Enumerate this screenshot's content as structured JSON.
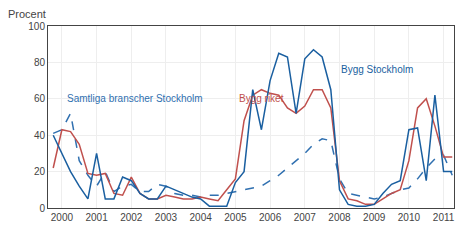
{
  "chart_data": {
    "type": "line",
    "y_label": "Procent",
    "x": [
      1999.75,
      2000.0,
      2000.25,
      2000.5,
      2000.75,
      2001.0,
      2001.25,
      2001.5,
      2001.75,
      2002.0,
      2002.25,
      2002.5,
      2002.75,
      2003.0,
      2003.25,
      2003.5,
      2003.75,
      2004.0,
      2004.25,
      2004.5,
      2004.75,
      2005.0,
      2005.25,
      2005.5,
      2005.75,
      2006.0,
      2006.25,
      2006.5,
      2006.75,
      2007.0,
      2007.25,
      2007.5,
      2007.75,
      2008.0,
      2008.25,
      2008.5,
      2008.75,
      2009.0,
      2009.25,
      2009.5,
      2009.75,
      2010.0,
      2010.25,
      2010.5,
      2010.75,
      2011.0,
      2011.25
    ],
    "series": [
      {
        "color": "#3070b0",
        "line_style": "dashed",
        "values": [
          41,
          43,
          52,
          26,
          18,
          12,
          20,
          9,
          12,
          13,
          9,
          9,
          13,
          12,
          8,
          7,
          7,
          6,
          7,
          7,
          8,
          9,
          10,
          11,
          12,
          15,
          18,
          22,
          26,
          30,
          35,
          38,
          37,
          16,
          8,
          7,
          6,
          5,
          6,
          8,
          10,
          11,
          16,
          22,
          27,
          29,
          18
        ]
      },
      {
        "color": "#c0504d",
        "line_style": "solid",
        "values": [
          22,
          43,
          42,
          35,
          19,
          18,
          19,
          8,
          7,
          17,
          8,
          5,
          5,
          7,
          6,
          5,
          5,
          6,
          5,
          4,
          10,
          16,
          48,
          62,
          65,
          63,
          62,
          55,
          52,
          56,
          65,
          65,
          55,
          15,
          5,
          4,
          2,
          2,
          5,
          8,
          10,
          26,
          55,
          60,
          45,
          28,
          28
        ]
      },
      {
        "color": "#1a5fa0",
        "line_style": "solid",
        "values": [
          40,
          30,
          20,
          12,
          5,
          30,
          5,
          5,
          17,
          15,
          8,
          5,
          5,
          12,
          10,
          8,
          6,
          5,
          1,
          1,
          1,
          14,
          20,
          65,
          43,
          70,
          85,
          83,
          52,
          82,
          87,
          83,
          65,
          10,
          2,
          1,
          1,
          2,
          8,
          13,
          15,
          43,
          44,
          15,
          62,
          20,
          20
        ]
      }
    ],
    "annotations": [
      {
        "text": "Samtliga branscher Stockholm",
        "x": 2000.1,
        "y": 56,
        "color": "#3070b0"
      },
      {
        "text": "Bygg riket",
        "x": 2005.05,
        "y": 56,
        "color": "#c0504d"
      },
      {
        "text": "Bygg Stockholm",
        "x": 2008.0,
        "y": 72,
        "color": "#1a5fa0"
      }
    ],
    "xlim": [
      1999.6,
      2011.3
    ],
    "xticks": [
      2000,
      2001,
      2002,
      2003,
      2004,
      2005,
      2006,
      2007,
      2008,
      2009,
      2010,
      2011
    ],
    "ylim": [
      0,
      100
    ],
    "yticks": [
      0,
      20,
      40,
      60,
      80,
      100
    ],
    "grid": true
  }
}
